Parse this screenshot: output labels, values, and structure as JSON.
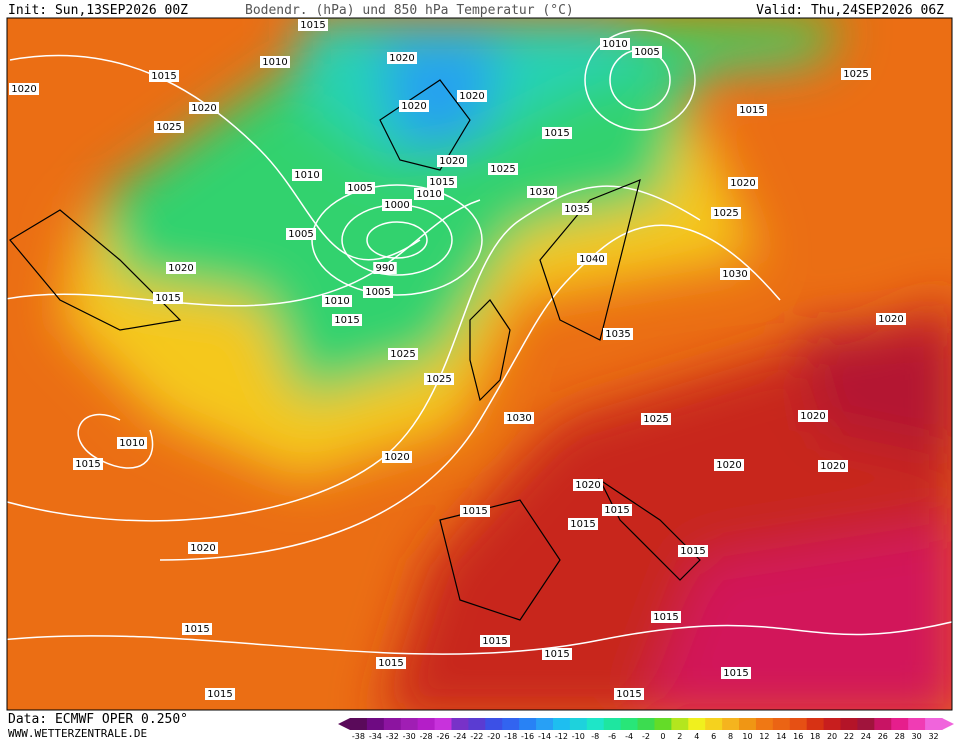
{
  "header": {
    "init": "Init: Sun,13SEP2026 00Z",
    "title": "Bodendr. (hPa) und 850 hPa Temperatur (°C)",
    "valid": "Valid: Thu,24SEP2026 06Z"
  },
  "footer": {
    "source": "Data: ECMWF OPER 0.250°",
    "website": "WWW.WETTERZENTRALE.DE"
  },
  "colorbar": {
    "labels": [
      "-38",
      "-34",
      "-32",
      "-30",
      "-28",
      "-26",
      "-24",
      "-22",
      "-20",
      "-18",
      "-16",
      "-14",
      "-12",
      "-10",
      "-8",
      "-6",
      "-4",
      "-2",
      "0",
      "2",
      "4",
      "6",
      "8",
      "10",
      "12",
      "14",
      "16",
      "18",
      "20",
      "22",
      "24",
      "26",
      "28",
      "30",
      "32"
    ],
    "colors": [
      "#5a0a5a",
      "#6e0a82",
      "#8c14a0",
      "#a01eb4",
      "#b41ec8",
      "#c832dc",
      "#7832c8",
      "#5a3cd2",
      "#3c50e6",
      "#3264f0",
      "#2882f5",
      "#28a0f5",
      "#1ebef0",
      "#1ed2dc",
      "#1ee6c8",
      "#1ee6a0",
      "#28e678",
      "#3cdc50",
      "#64dc28",
      "#b4e61e",
      "#f0f01e",
      "#f5d21e",
      "#f5b41e",
      "#f09614",
      "#f07814",
      "#eb6414",
      "#e65014",
      "#d73214",
      "#c81e1e",
      "#b41428",
      "#a0143c",
      "#c81464",
      "#e61e8c",
      "#f03cb4",
      "#f064dc"
    ]
  },
  "isobars": [
    "1015",
    "1010",
    "1020",
    "1010",
    "1005",
    "1025",
    "1015",
    "1020",
    "1020",
    "1020",
    "1020",
    "1015",
    "1025",
    "1015",
    "1020",
    "1015",
    "1025",
    "1020",
    "1010",
    "1005",
    "1010",
    "1030",
    "1000",
    "1035",
    "1025",
    "1005",
    "990",
    "1040",
    "1030",
    "1020",
    "1015",
    "1010",
    "1005",
    "1015",
    "1035",
    "1020",
    "1025",
    "1025",
    "1030",
    "1025",
    "1020",
    "1010",
    "1015",
    "1020",
    "1020",
    "1020",
    "1020",
    "1015",
    "1015",
    "1015",
    "1015",
    "1020",
    "1015",
    "1015",
    "1015",
    "1015",
    "1015",
    "1015",
    "1015",
    "1015"
  ]
}
